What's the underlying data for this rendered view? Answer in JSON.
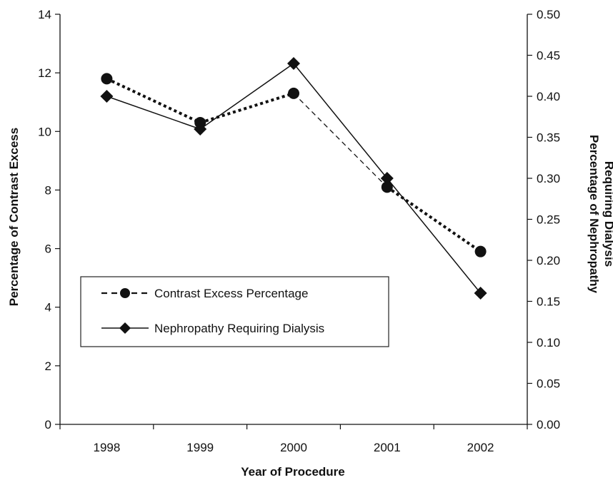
{
  "chart_data": {
    "type": "line",
    "title": "",
    "xlabel": "Year of Procedure",
    "ylabel_left": "Percentage of Contrast Excess",
    "ylabel_right_lines": [
      "Percentage of Nephropathy",
      "Requiring Dialysis"
    ],
    "categories": [
      "1998",
      "1999",
      "2000",
      "2001",
      "2002"
    ],
    "y_left": {
      "min": 0,
      "max": 14,
      "ticks": [
        "0",
        "2",
        "4",
        "6",
        "8",
        "10",
        "12",
        "14"
      ]
    },
    "y_right": {
      "min": 0,
      "max": 0.5,
      "ticks": [
        "0.00",
        "0.05",
        "0.10",
        "0.15",
        "0.20",
        "0.25",
        "0.30",
        "0.35",
        "0.40",
        "0.45",
        "0.50"
      ]
    },
    "grid": false,
    "legend_position": "lower-left",
    "series": [
      {
        "name": "Contrast Excess Percentage",
        "axis": "left",
        "marker": "circle",
        "line": "dotted",
        "values": [
          11.8,
          10.3,
          11.3,
          8.1,
          5.9
        ]
      },
      {
        "name": "Nephropathy Requiring Dialysis",
        "axis": "right",
        "marker": "diamond",
        "line": "solid",
        "values": [
          0.4,
          0.36,
          0.44,
          0.3,
          0.16
        ]
      }
    ]
  }
}
